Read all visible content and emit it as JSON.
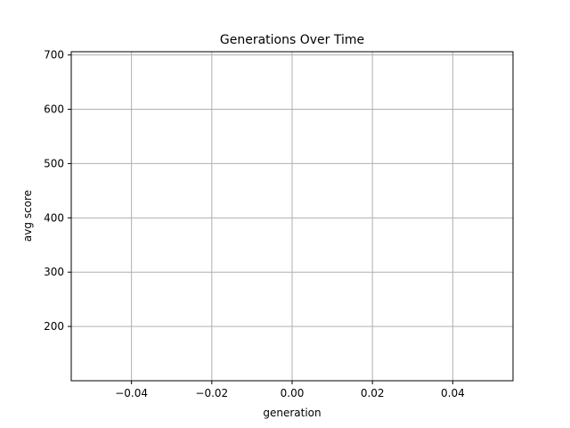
{
  "chart_data": {
    "type": "line",
    "title": "Generations Over Time",
    "xlabel": "generation",
    "ylabel": "avg score",
    "xlim": [
      -0.055,
      0.055
    ],
    "ylim": [
      100,
      706
    ],
    "x_ticks": [
      -0.04,
      -0.02,
      0.0,
      0.02,
      0.04
    ],
    "x_tick_labels": [
      "−0.04",
      "−0.02",
      "0.00",
      "0.02",
      "0.04"
    ],
    "y_ticks": [
      200,
      300,
      400,
      500,
      600,
      700
    ],
    "y_tick_labels": [
      "200",
      "300",
      "400",
      "500",
      "600",
      "700"
    ],
    "grid": true,
    "series": []
  }
}
